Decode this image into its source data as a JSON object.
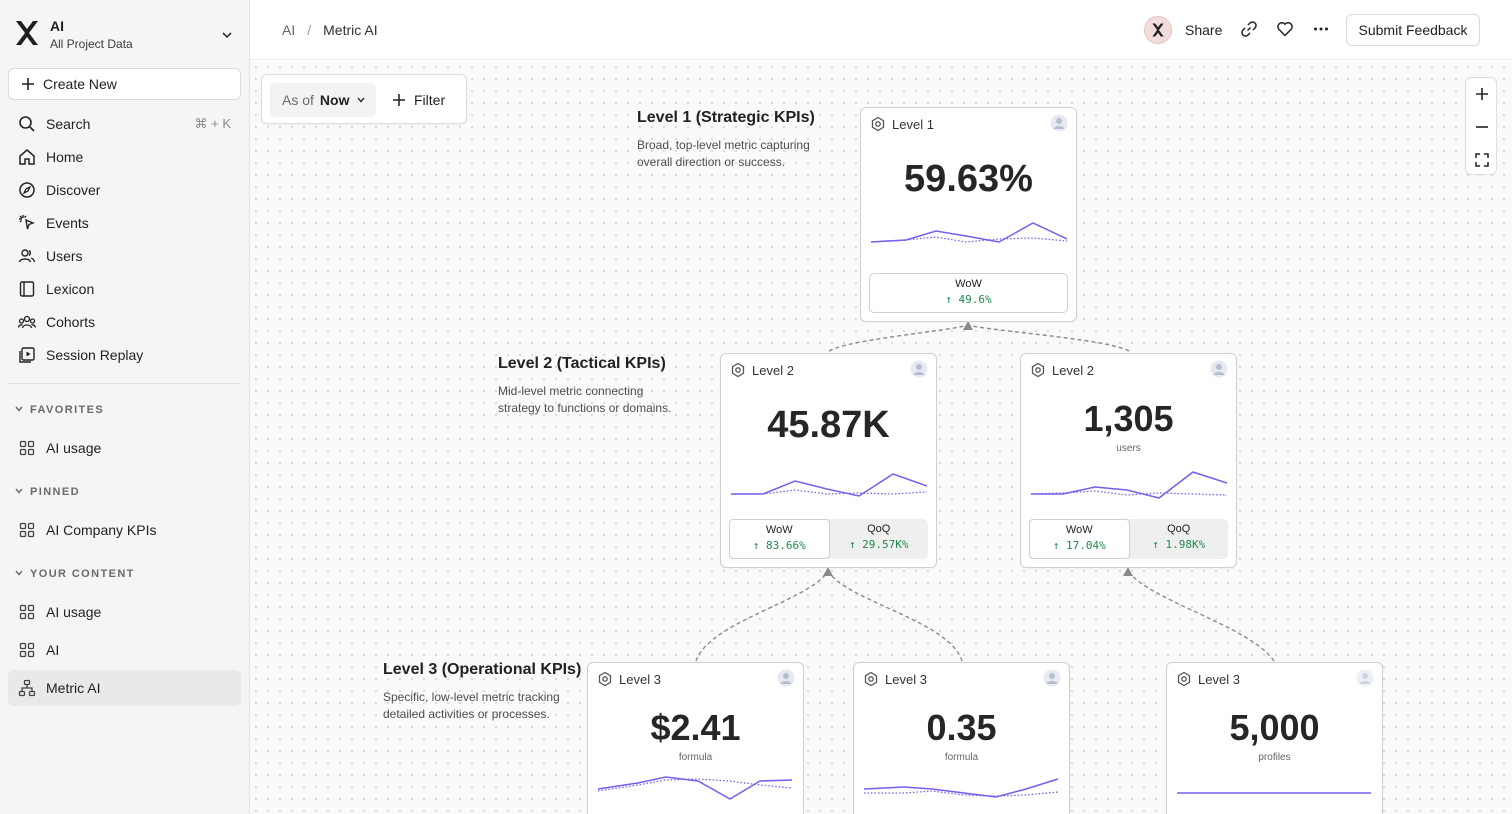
{
  "sidebar": {
    "project_name": "AI",
    "project_sub": "All Project Data",
    "create_label": "Create New",
    "nav": [
      {
        "label": "Search",
        "icon": "search-icon",
        "shortcut": "⌘ + K"
      },
      {
        "label": "Home",
        "icon": "home-icon"
      },
      {
        "label": "Discover",
        "icon": "compass-icon"
      },
      {
        "label": "Events",
        "icon": "events-icon"
      },
      {
        "label": "Users",
        "icon": "users-icon"
      },
      {
        "label": "Lexicon",
        "icon": "book-icon"
      },
      {
        "label": "Cohorts",
        "icon": "cohorts-icon"
      },
      {
        "label": "Session Replay",
        "icon": "replay-icon"
      }
    ],
    "favorites_title": "FAVORITES",
    "favorites": [
      {
        "label": "AI usage"
      }
    ],
    "pinned_title": "PINNED",
    "pinned": [
      {
        "label": "AI Company KPIs"
      }
    ],
    "content_title": "YOUR CONTENT",
    "content": [
      {
        "label": "AI usage"
      },
      {
        "label": "AI"
      },
      {
        "label": "Metric AI"
      }
    ]
  },
  "header": {
    "breadcrumb_root": "AI",
    "breadcrumb_current": "Metric AI",
    "share_label": "Share",
    "feedback_label": "Submit Feedback"
  },
  "toolbar": {
    "asof_label": "As of",
    "asof_value": "Now",
    "filter_label": "Filter"
  },
  "levels": [
    {
      "title": "Level 1 (Strategic KPIs)",
      "desc": "Broad, top-level metric capturing overall direction or success."
    },
    {
      "title": "Level 2 (Tactical KPIs)",
      "desc": "Mid-level metric connecting strategy to functions or domains."
    },
    {
      "title": "Level 3 (Operational KPIs)",
      "desc": "Specific, low-level metric tracking detailed activities or processes."
    }
  ],
  "cards": {
    "l1": {
      "title": "Level 1",
      "value": "59.63%",
      "deltas": [
        {
          "label": "WoW",
          "value": "↑ 49.6%"
        }
      ]
    },
    "l2a": {
      "title": "Level 2",
      "value": "45.87K",
      "deltas": [
        {
          "label": "WoW",
          "value": "↑ 83.66%"
        },
        {
          "label": "QoQ",
          "value": "↑ 29.57K%"
        }
      ]
    },
    "l2b": {
      "title": "Level 2",
      "value": "1,305",
      "unit": "users",
      "deltas": [
        {
          "label": "WoW",
          "value": "↑ 17.04%"
        },
        {
          "label": "QoQ",
          "value": "↑ 1.98K%"
        }
      ]
    },
    "l3a": {
      "title": "Level 3",
      "value": "$2.41",
      "unit": "formula"
    },
    "l3b": {
      "title": "Level 3",
      "value": "0.35",
      "unit": "formula"
    },
    "l3c": {
      "title": "Level 3",
      "value": "5,000",
      "unit": "profiles"
    }
  },
  "colors": {
    "accent": "#7b5cf0",
    "positive": "#1f8a4c"
  }
}
